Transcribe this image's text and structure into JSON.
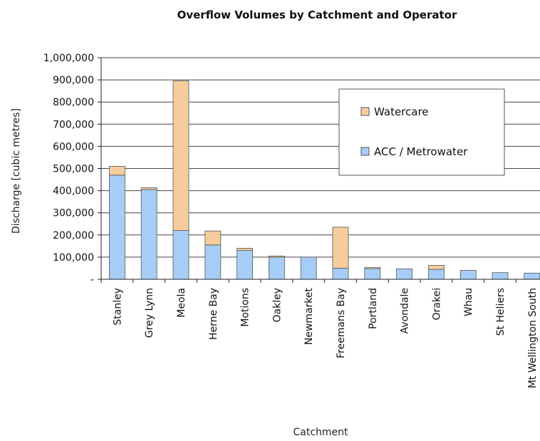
{
  "chart_data": {
    "type": "bar",
    "stacked": true,
    "title": "Overflow Volumes by Catchment and Operator",
    "xlabel": "Catchment",
    "ylabel": "Discharge [cubic metres]",
    "ylim": [
      0,
      1000000
    ],
    "yticks": [
      "-",
      "100,000",
      "200,000",
      "300,000",
      "400,000",
      "500,000",
      "600,000",
      "700,000",
      "800,000",
      "900,000",
      "1,000,000"
    ],
    "grid": true,
    "legend_position": "top-right",
    "categories": [
      "Stanley",
      "Grey Lynn",
      "Meola",
      "Herne Bay",
      "Motions",
      "Oakley",
      "Newmarket",
      "Freemans Bay",
      "Portland",
      "Avondale",
      "Orakei",
      "Whau",
      "St Heliers",
      "Mt Wellington South"
    ],
    "series": [
      {
        "name": "ACC / Metrowater",
        "color": "#a6cdf7",
        "values": [
          470000,
          405000,
          220000,
          155000,
          130000,
          100000,
          100000,
          50000,
          48000,
          47000,
          45000,
          40000,
          30000,
          28000
        ]
      },
      {
        "name": "Watercare",
        "color": "#f7cc9c",
        "values": [
          40000,
          8000,
          675000,
          63000,
          10000,
          5000,
          0,
          185000,
          5000,
          0,
          18000,
          0,
          0,
          0
        ]
      }
    ]
  }
}
